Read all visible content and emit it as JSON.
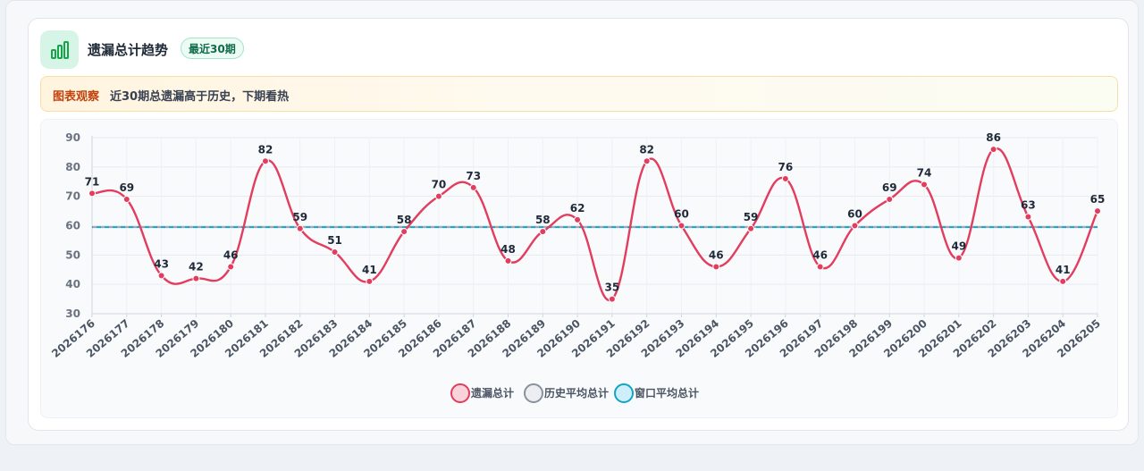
{
  "header": {
    "title": "遗漏总计趋势",
    "badge": "最近30期"
  },
  "observation": {
    "tag": "图表观察",
    "text": "近30期总遗漏高于历史，下期看热"
  },
  "colors": {
    "series_main": "#e23d5f",
    "history_avg": "#9ca3af",
    "window_avg": "#0ea5c6",
    "accent_green": "#16a34a"
  },
  "chart_data": {
    "type": "line",
    "x": [
      "2026176",
      "2026177",
      "2026178",
      "2026179",
      "2026180",
      "2026181",
      "2026182",
      "2026183",
      "2026184",
      "2026185",
      "2026186",
      "2026187",
      "2026188",
      "2026189",
      "2026190",
      "2026191",
      "2026192",
      "2026193",
      "2026194",
      "2026195",
      "2026196",
      "2026197",
      "2026198",
      "2026199",
      "2026200",
      "2026201",
      "2026202",
      "2026203",
      "2026204",
      "2026205"
    ],
    "series": [
      {
        "name": "遗漏总计",
        "values": [
          71,
          69,
          43,
          42,
          46,
          82,
          59,
          51,
          41,
          58,
          70,
          73,
          48,
          58,
          62,
          35,
          82,
          60,
          46,
          59,
          76,
          46,
          60,
          69,
          74,
          49,
          86,
          63,
          41,
          65
        ]
      },
      {
        "name": "历史平均总计",
        "values": [
          59.5,
          59.5,
          59.5,
          59.5,
          59.5,
          59.5,
          59.5,
          59.5,
          59.5,
          59.5,
          59.5,
          59.5,
          59.5,
          59.5,
          59.5,
          59.5,
          59.5,
          59.5,
          59.5,
          59.5,
          59.5,
          59.5,
          59.5,
          59.5,
          59.5,
          59.5,
          59.5,
          59.5,
          59.5,
          59.5
        ]
      },
      {
        "name": "窗口平均总计",
        "values": [
          59.5,
          59.5,
          59.5,
          59.5,
          59.5,
          59.5,
          59.5,
          59.5,
          59.5,
          59.5,
          59.5,
          59.5,
          59.5,
          59.5,
          59.5,
          59.5,
          59.5,
          59.5,
          59.5,
          59.5,
          59.5,
          59.5,
          59.5,
          59.5,
          59.5,
          59.5,
          59.5,
          59.5,
          59.5,
          59.5
        ]
      }
    ],
    "ylim": [
      30,
      90
    ],
    "yticks": [
      30,
      40,
      50,
      60,
      70,
      80,
      90
    ],
    "grid": true,
    "legend_position": "bottom-center",
    "data_labels": true
  }
}
